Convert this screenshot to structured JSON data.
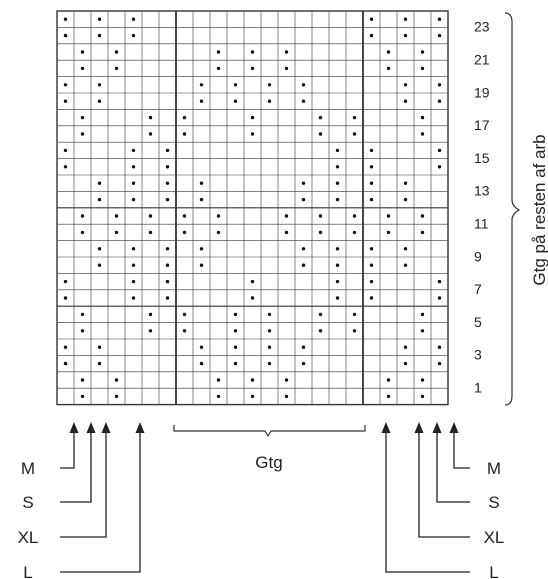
{
  "row_numbers": [
    "23",
    "21",
    "19",
    "17",
    "15",
    "13",
    "11",
    "9",
    "7",
    "5",
    "3",
    "1"
  ],
  "repeat_label": "Gtg",
  "side_label": "Gtg på resten af arb",
  "size_labels_left": [
    "M",
    "S",
    "XL",
    "L"
  ],
  "size_labels_right": [
    "M",
    "S",
    "XL",
    "L"
  ],
  "grid": {
    "columns": 23,
    "rows": 24,
    "symbol": "purl-dot",
    "colors": {
      "line": "#333333",
      "dot": "#111111",
      "bg": "#ffffff"
    },
    "dots_top_down": [
      [
        0,
        2,
        4,
        18,
        20,
        22
      ],
      [
        0,
        2,
        4,
        18,
        20,
        22
      ],
      [
        1,
        3,
        9,
        11,
        13,
        19,
        21
      ],
      [
        1,
        3,
        9,
        11,
        13,
        19,
        21
      ],
      [
        0,
        2,
        8,
        10,
        12,
        14,
        20,
        22
      ],
      [
        0,
        2,
        8,
        10,
        12,
        14,
        20,
        22
      ],
      [
        1,
        5,
        7,
        11,
        15,
        17,
        21
      ],
      [
        1,
        5,
        7,
        11,
        15,
        17,
        21
      ],
      [
        0,
        4,
        6,
        16,
        18,
        22
      ],
      [
        0,
        4,
        6,
        16,
        18,
        22
      ],
      [
        2,
        4,
        6,
        8,
        14,
        16,
        18,
        20
      ],
      [
        2,
        4,
        6,
        8,
        14,
        16,
        18,
        20
      ],
      [
        1,
        3,
        5,
        7,
        9,
        13,
        15,
        17,
        19,
        21
      ],
      [
        1,
        3,
        5,
        7,
        9,
        13,
        15,
        17,
        19,
        21
      ],
      [
        2,
        4,
        6,
        8,
        14,
        16,
        18,
        20
      ],
      [
        2,
        4,
        6,
        8,
        14,
        16,
        18,
        20
      ],
      [
        0,
        4,
        6,
        11,
        16,
        18,
        22
      ],
      [
        0,
        4,
        6,
        11,
        16,
        18,
        22
      ],
      [
        1,
        5,
        7,
        10,
        12,
        15,
        17,
        21
      ],
      [
        1,
        5,
        7,
        10,
        12,
        15,
        17,
        21
      ],
      [
        0,
        2,
        8,
        10,
        12,
        14,
        20,
        22
      ],
      [
        0,
        2,
        8,
        10,
        12,
        14,
        20,
        22
      ],
      [
        1,
        3,
        9,
        11,
        13,
        19,
        21
      ],
      [
        1,
        3,
        9,
        11,
        13,
        19,
        21
      ]
    ]
  }
}
